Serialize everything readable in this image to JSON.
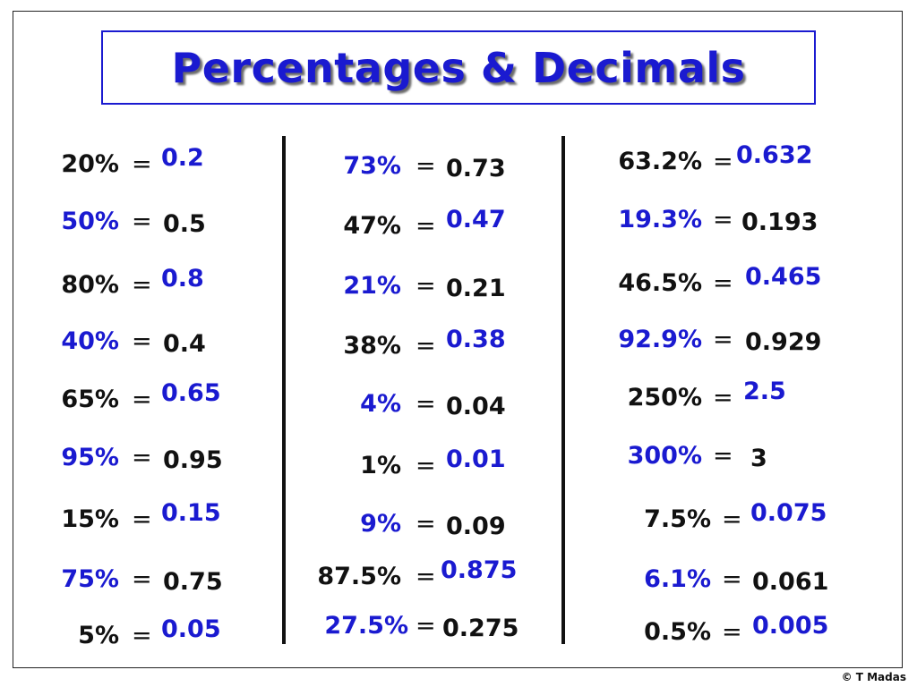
{
  "title": "Percentages & Decimals",
  "equals_sign": "=",
  "copyright": "© T Madas",
  "colors": {
    "question_or_answer": "#1a1ad0",
    "given": "#111111",
    "title": "#1a1ad0"
  },
  "columns": [
    [
      {
        "pct": "20%",
        "dec": "0.2",
        "answer": "dec"
      },
      {
        "pct": "50%",
        "dec": "0.5",
        "answer": "pct"
      },
      {
        "pct": "80%",
        "dec": "0.8",
        "answer": "dec"
      },
      {
        "pct": "40%",
        "dec": "0.4",
        "answer": "pct"
      },
      {
        "pct": "65%",
        "dec": "0.65",
        "answer": "dec"
      },
      {
        "pct": "95%",
        "dec": "0.95",
        "answer": "pct"
      },
      {
        "pct": "15%",
        "dec": "0.15",
        "answer": "dec"
      },
      {
        "pct": "75%",
        "dec": "0.75",
        "answer": "pct"
      },
      {
        "pct": "5%",
        "dec": "0.05",
        "answer": "dec"
      }
    ],
    [
      {
        "pct": "73%",
        "dec": "0.73",
        "answer": "pct"
      },
      {
        "pct": "47%",
        "dec": "0.47",
        "answer": "dec"
      },
      {
        "pct": "21%",
        "dec": "0.21",
        "answer": "pct"
      },
      {
        "pct": "38%",
        "dec": "0.38",
        "answer": "dec"
      },
      {
        "pct": "4%",
        "dec": "0.04",
        "answer": "pct"
      },
      {
        "pct": "1%",
        "dec": "0.01",
        "answer": "dec"
      },
      {
        "pct": "9%",
        "dec": "0.09",
        "answer": "pct"
      },
      {
        "pct": "87.5%",
        "dec": "0.875",
        "answer": "dec"
      },
      {
        "pct": "27.5%",
        "dec": "0.275",
        "answer": "pct"
      }
    ],
    [
      {
        "pct": "63.2%",
        "dec": "0.632",
        "answer": "dec"
      },
      {
        "pct": "19.3%",
        "dec": "0.193",
        "answer": "pct"
      },
      {
        "pct": "46.5%",
        "dec": "0.465",
        "answer": "dec"
      },
      {
        "pct": "92.9%",
        "dec": "0.929",
        "answer": "pct"
      },
      {
        "pct": "250%",
        "dec": "2.5",
        "answer": "dec"
      },
      {
        "pct": "300%",
        "dec": "3",
        "answer": "pct"
      },
      {
        "pct": "7.5%",
        "dec": "0.075",
        "answer": "dec"
      },
      {
        "pct": "6.1%",
        "dec": "0.061",
        "answer": "pct"
      },
      {
        "pct": "0.5%",
        "dec": "0.005",
        "answer": "dec"
      }
    ]
  ]
}
